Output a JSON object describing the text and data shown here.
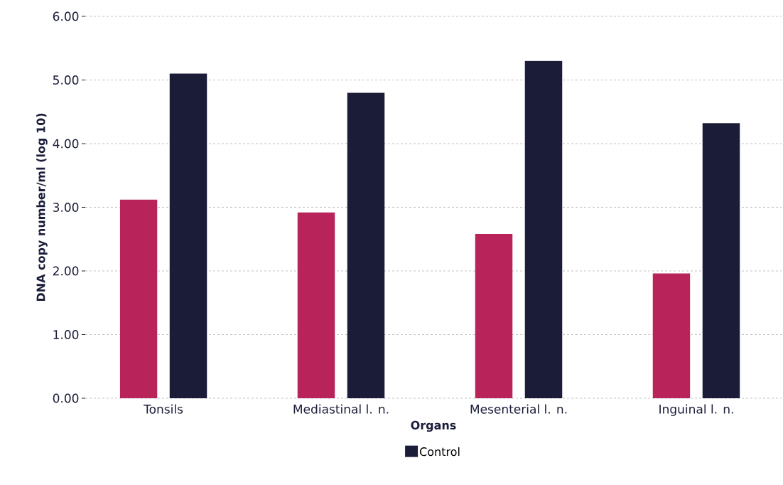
{
  "chart_data": {
    "type": "bar",
    "xlabel": "Organs",
    "ylabel": "DNA copy number/ml (log 10)",
    "categories": [
      "Tonsils",
      "Mediastinal l. n.",
      "Mesenterial l. n.",
      "Inguinal l. n."
    ],
    "series": [
      {
        "color": "#b8245a",
        "values": [
          3.12,
          2.92,
          2.58,
          1.96
        ]
      },
      {
        "name": "Control",
        "color": "#1b1c38",
        "values": [
          5.1,
          4.8,
          5.3,
          4.32
        ]
      }
    ],
    "ylim": [
      0,
      6
    ],
    "yticks": [
      {
        "value": 0,
        "label": "0.00"
      },
      {
        "value": 1,
        "label": "1.00"
      },
      {
        "value": 2,
        "label": "2.00"
      },
      {
        "value": 3,
        "label": "3.00"
      },
      {
        "value": 4,
        "label": "4.00"
      },
      {
        "value": 5,
        "label": "5.00"
      },
      {
        "value": 6,
        "label": "6.00"
      }
    ],
    "grid": "y",
    "legend": "bottom"
  }
}
